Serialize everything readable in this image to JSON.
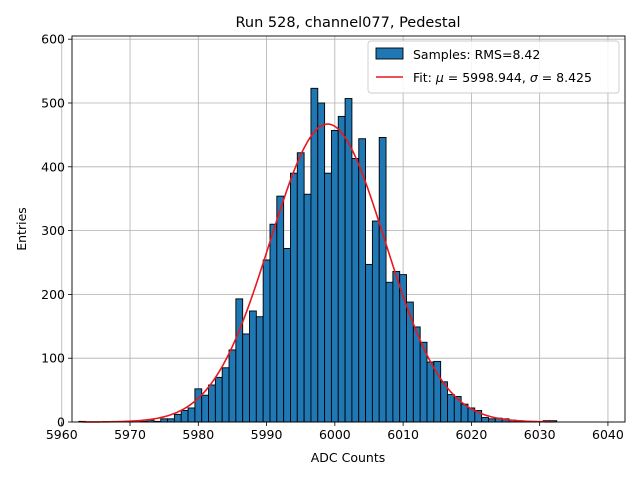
{
  "chart_data": {
    "type": "bar",
    "title": "Run 528, channel077, Pedestal",
    "xlabel": "ADC Counts",
    "ylabel": "Entries",
    "xlim": [
      5961.5,
      6042.5
    ],
    "ylim": [
      0,
      605
    ],
    "xticks": [
      5960,
      5970,
      5980,
      5990,
      6000,
      6010,
      6020,
      6030,
      6040
    ],
    "yticks": [
      0,
      100,
      200,
      300,
      400,
      500,
      600
    ],
    "grid": true,
    "legend_position": "top-right",
    "bin_width": 1,
    "histogram": {
      "name": "Samples: RMS=8.42",
      "color": "#1f77b4",
      "edge_color": "#000000",
      "bins": [
        [
          5963,
          1
        ],
        [
          5964,
          0
        ],
        [
          5965,
          0
        ],
        [
          5966,
          0
        ],
        [
          5967,
          0
        ],
        [
          5968,
          0
        ],
        [
          5969,
          0
        ],
        [
          5970,
          1
        ],
        [
          5971,
          0
        ],
        [
          5972,
          1
        ],
        [
          5973,
          3
        ],
        [
          5974,
          1
        ],
        [
          5975,
          5
        ],
        [
          5976,
          5
        ],
        [
          5977,
          12
        ],
        [
          5978,
          18
        ],
        [
          5979,
          22
        ],
        [
          5980,
          52
        ],
        [
          5981,
          42
        ],
        [
          5982,
          58
        ],
        [
          5983,
          70
        ],
        [
          5984,
          85
        ],
        [
          5985,
          113
        ],
        [
          5986,
          193
        ],
        [
          5987,
          138
        ],
        [
          5988,
          174
        ],
        [
          5989,
          165
        ],
        [
          5990,
          254
        ],
        [
          5991,
          310
        ],
        [
          5992,
          354
        ],
        [
          5993,
          272
        ],
        [
          5994,
          390
        ],
        [
          5995,
          422
        ],
        [
          5996,
          357
        ],
        [
          5997,
          523
        ],
        [
          5998,
          500
        ],
        [
          5999,
          390
        ],
        [
          6000,
          457
        ],
        [
          6001,
          479
        ],
        [
          6002,
          507
        ],
        [
          6003,
          413
        ],
        [
          6004,
          444
        ],
        [
          6005,
          247
        ],
        [
          6006,
          315
        ],
        [
          6007,
          446
        ],
        [
          6008,
          219
        ],
        [
          6009,
          236
        ],
        [
          6010,
          231
        ],
        [
          6011,
          188
        ],
        [
          6012,
          149
        ],
        [
          6013,
          125
        ],
        [
          6014,
          94
        ],
        [
          6015,
          95
        ],
        [
          6016,
          63
        ],
        [
          6017,
          43
        ],
        [
          6018,
          40
        ],
        [
          6019,
          28
        ],
        [
          6020,
          22
        ],
        [
          6021,
          18
        ],
        [
          6022,
          7
        ],
        [
          6023,
          5
        ],
        [
          6024,
          6
        ],
        [
          6025,
          5
        ],
        [
          6026,
          3
        ],
        [
          6027,
          2
        ],
        [
          6028,
          1
        ],
        [
          6029,
          1
        ],
        [
          6030,
          0
        ],
        [
          6031,
          2
        ],
        [
          6032,
          2
        ]
      ]
    },
    "fit": {
      "name": "Fit: μ = 5998.944, σ = 8.425",
      "label_prefix": "Fit: ",
      "mu_symbol": "μ",
      "mu_text": " = 5998.944, ",
      "sigma_symbol": "σ",
      "sigma_text": " = 8.425",
      "color": "#e8181e",
      "mu": 5998.944,
      "sigma": 8.425,
      "amplitude": 467,
      "x_range": [
        5963,
        6032
      ]
    }
  }
}
